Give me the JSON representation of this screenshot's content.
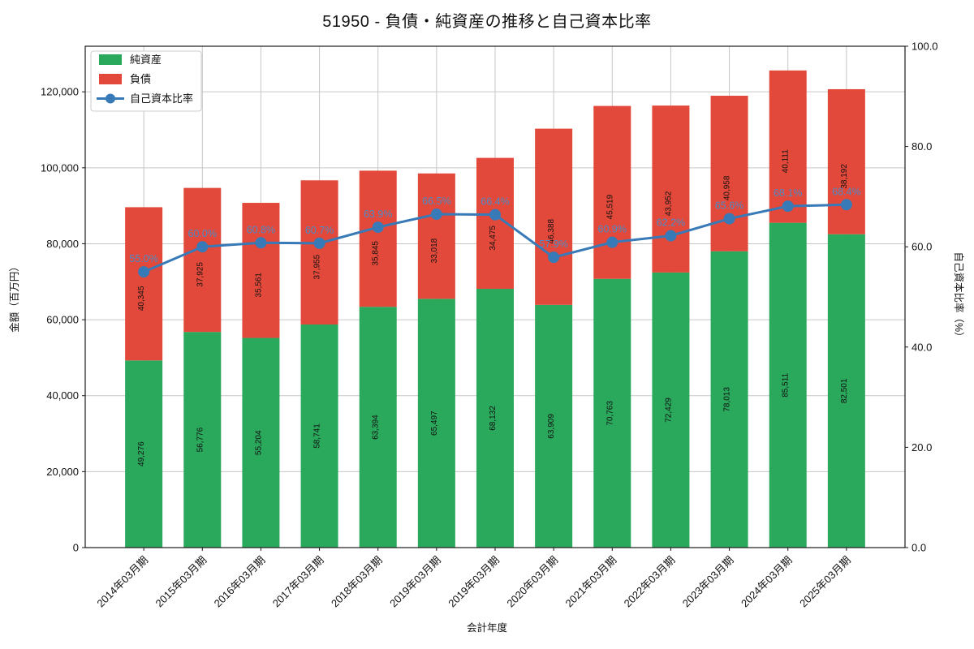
{
  "title": "51950 - 負債・純資産の推移と自己資本比率",
  "colors": {
    "net_assets": "#2aa85c",
    "liabilities": "#e2493a",
    "ratio_line": "#377ab7",
    "ratio_text": "#4e8ac5",
    "grid": "#c6c6c6",
    "spine": "#1a1a1a",
    "label_text": "#111111",
    "legend_border": "#cccccc"
  },
  "legend": {
    "items": [
      {
        "label": "純資産",
        "type": "box"
      },
      {
        "label": "負債",
        "type": "box"
      },
      {
        "label": "自己資本比率",
        "type": "line"
      }
    ]
  },
  "chart_data": {
    "type": "bar",
    "subtype": "stacked-bars-with-line",
    "title": "51950 - 負債・純資産の推移と自己資本比率",
    "xlabel": "会計年度",
    "ylabel_left": "金額（百万円）",
    "ylabel_right": "自己資本比率（%）",
    "legend_position": "upper-left",
    "grid": true,
    "categories": [
      "2014年03月期",
      "2015年03月期",
      "2016年03月期",
      "2017年03月期",
      "2018年03月期",
      "2019年03月期",
      "2019年03月期",
      "2020年03月期",
      "2021年03月期",
      "2022年03月期",
      "2023年03月期",
      "2024年03月期",
      "2025年03月期"
    ],
    "series": [
      {
        "name": "純資産",
        "axis": "left",
        "values": [
          49276,
          56776,
          55204,
          58741,
          63394,
          65497,
          68132,
          63909,
          70763,
          72429,
          78013,
          85511,
          82501
        ]
      },
      {
        "name": "負債",
        "axis": "left",
        "values": [
          40345,
          37925,
          35561,
          37955,
          35845,
          33018,
          34475,
          46388,
          45519,
          43952,
          40958,
          40111,
          38192
        ]
      },
      {
        "name": "自己資本比率",
        "axis": "right",
        "unit": "%",
        "values": [
          55.0,
          60.0,
          60.8,
          60.7,
          63.9,
          66.5,
          66.4,
          57.9,
          60.9,
          62.2,
          65.6,
          68.1,
          68.4
        ]
      }
    ],
    "ylim_left": [
      0,
      132000
    ],
    "ylim_right": [
      0,
      100
    ],
    "yticks_left": [
      0,
      20000,
      40000,
      60000,
      80000,
      100000,
      120000
    ],
    "yticks_right": [
      0,
      20,
      40,
      60,
      80,
      100
    ]
  }
}
